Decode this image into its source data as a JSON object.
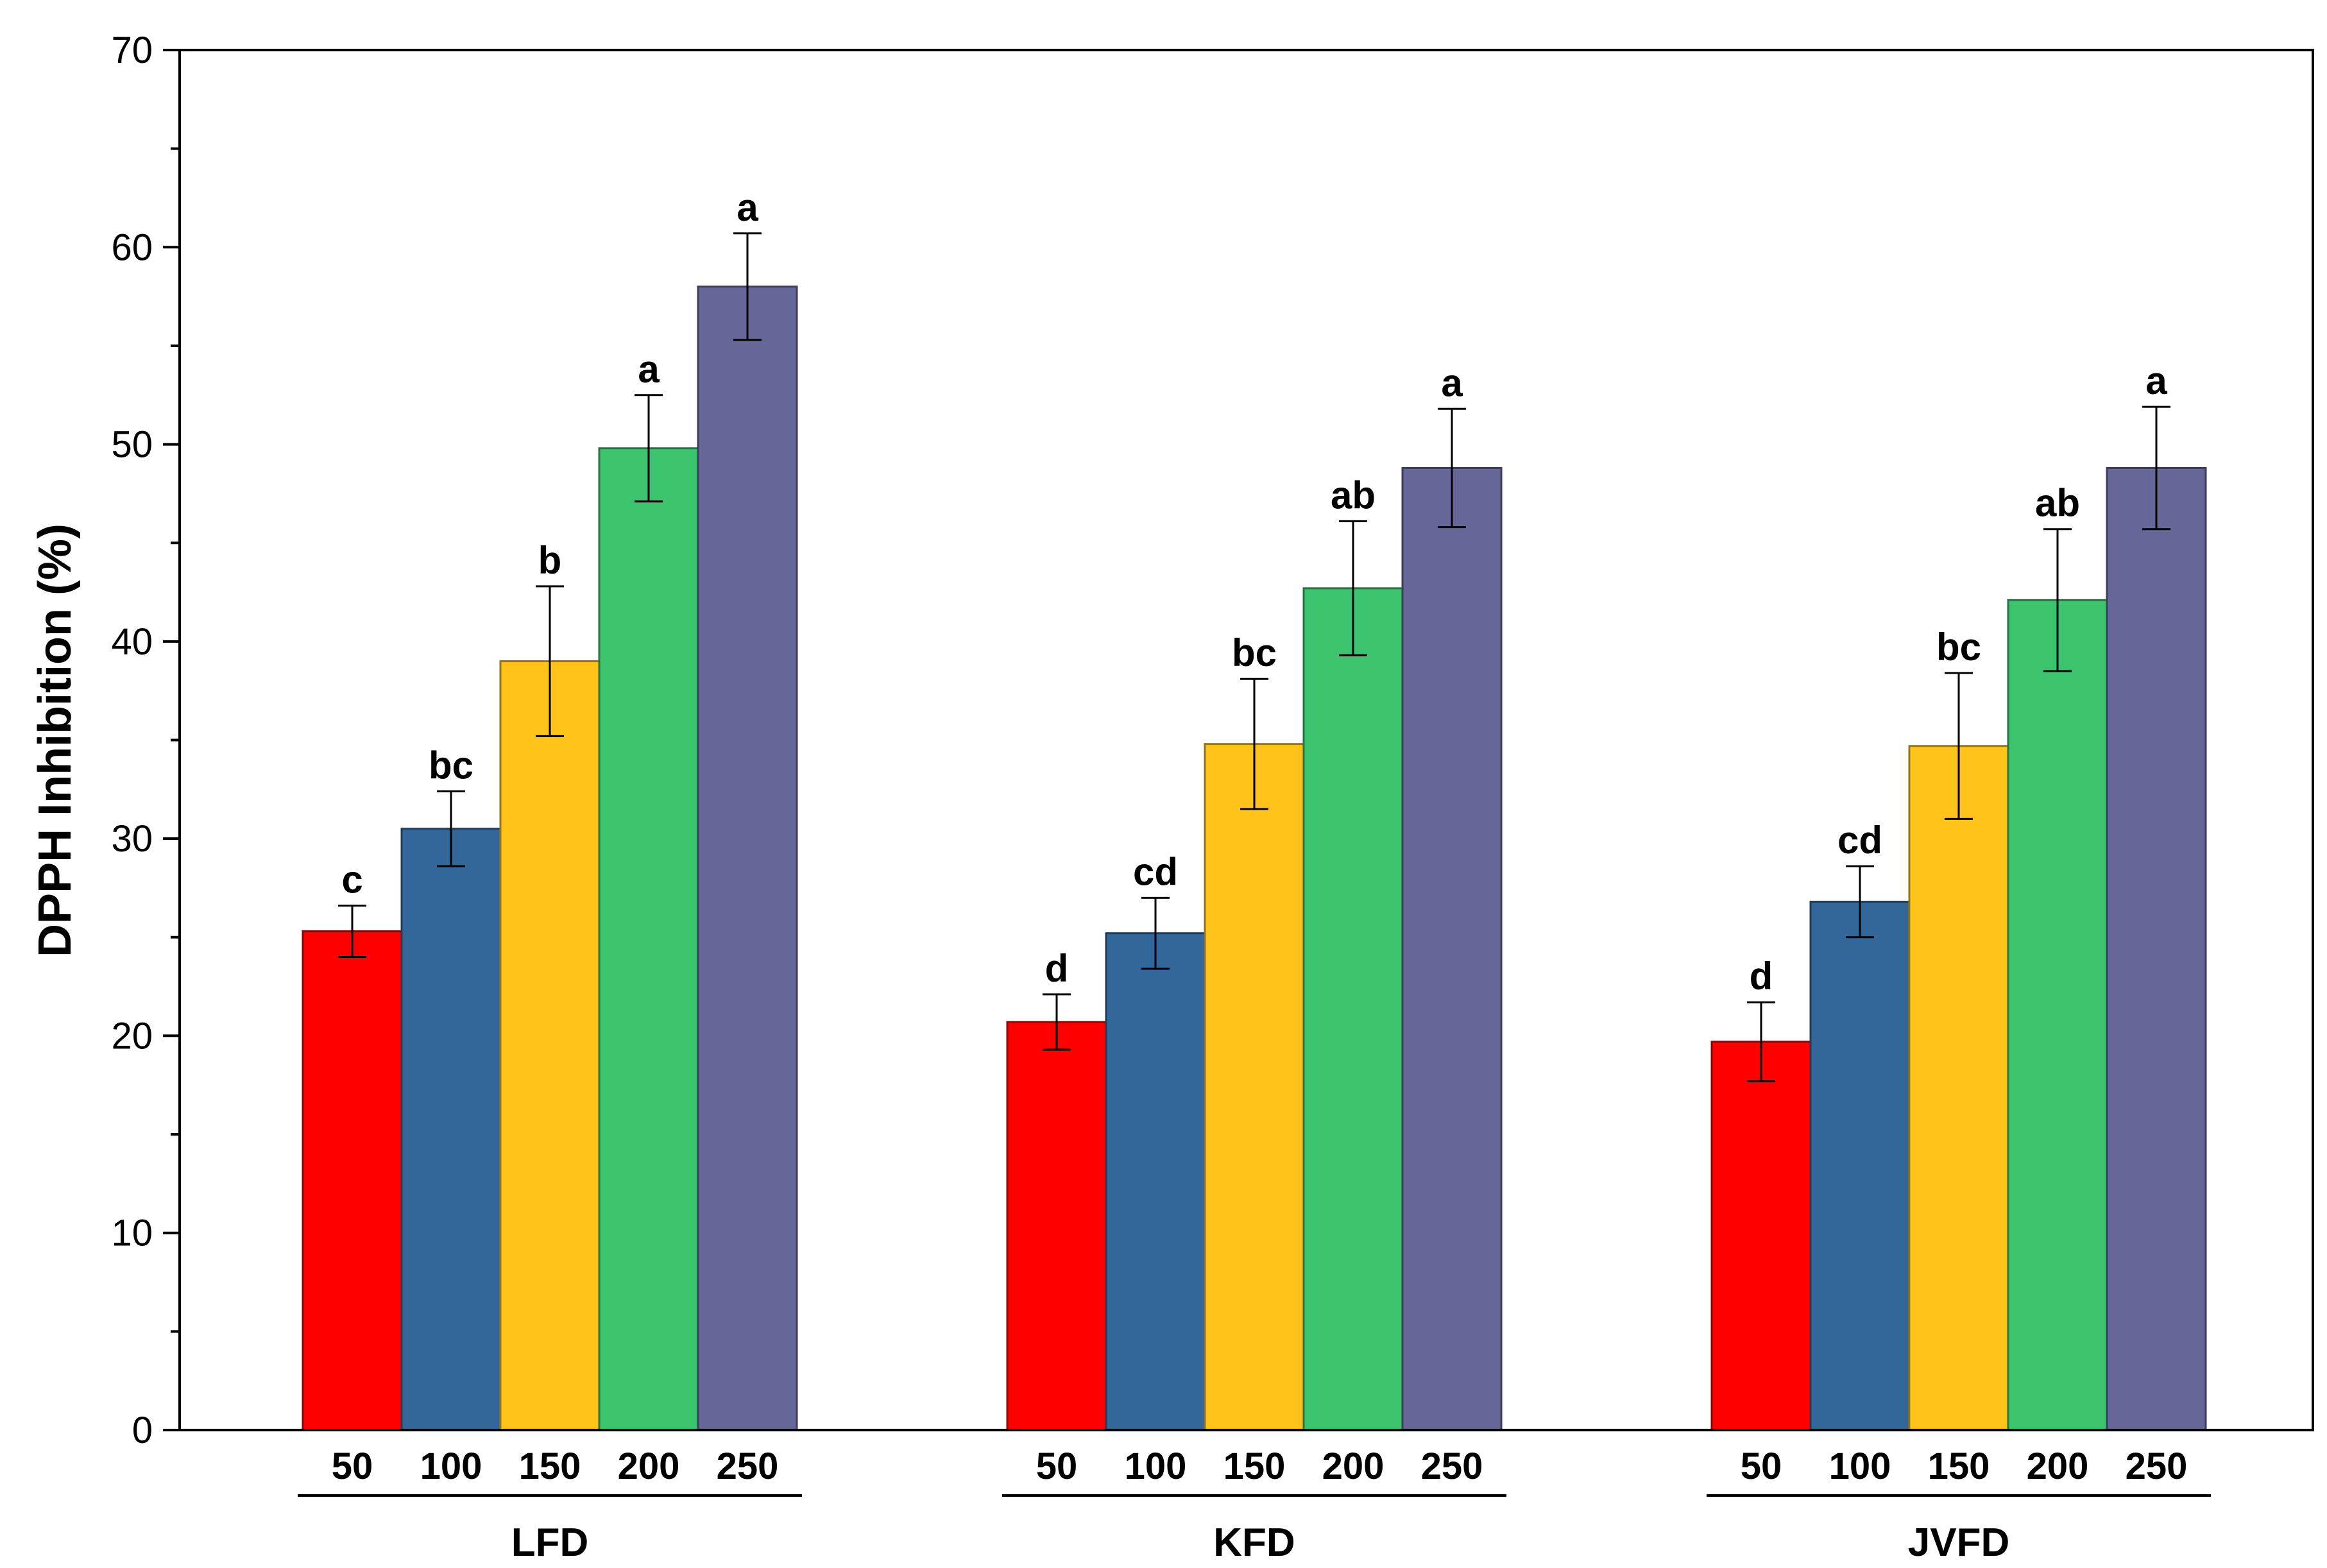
{
  "chart_data": {
    "type": "bar",
    "title": "",
    "xlabel": "",
    "ylabel": "DPPH Inhibition (%)",
    "ylim": [
      0,
      70
    ],
    "y_ticks": [
      0,
      10,
      20,
      30,
      40,
      50,
      60,
      70
    ],
    "grid": false,
    "legend": "none",
    "categories": [
      "50",
      "100",
      "150",
      "200",
      "250"
    ],
    "groups": [
      "LFD",
      "KFD",
      "JVFD"
    ],
    "colors": [
      "#ff0000",
      "#336699",
      "#ffc31a",
      "#3cc36e",
      "#666699"
    ],
    "series": [
      {
        "group": "LFD",
        "values": [
          25.3,
          30.5,
          39.0,
          49.8,
          58.0
        ],
        "errors": [
          1.3,
          1.9,
          3.8,
          2.7,
          2.7
        ],
        "letters": [
          "c",
          "bc",
          "b",
          "a",
          "a"
        ]
      },
      {
        "group": "KFD",
        "values": [
          20.7,
          25.2,
          34.8,
          42.7,
          48.8
        ],
        "errors": [
          1.4,
          1.8,
          3.3,
          3.4,
          3.0
        ],
        "letters": [
          "d",
          "cd",
          "bc",
          "ab",
          "a"
        ]
      },
      {
        "group": "JVFD",
        "values": [
          19.7,
          26.8,
          34.7,
          42.1,
          48.8
        ],
        "errors": [
          2.0,
          1.8,
          3.7,
          3.6,
          3.1
        ],
        "letters": [
          "d",
          "cd",
          "bc",
          "ab",
          "a"
        ]
      }
    ]
  }
}
